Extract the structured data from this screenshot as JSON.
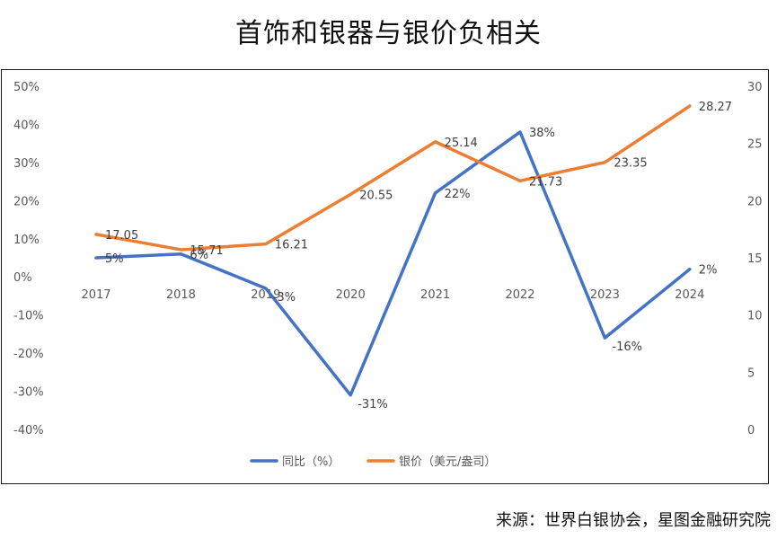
{
  "title": "首饰和银器与银价负相关",
  "source": "来源：世界白银协会，星图金融研究院",
  "chart_data": {
    "type": "line",
    "categories": [
      "2017",
      "2018",
      "2019",
      "2020",
      "2021",
      "2022",
      "2023",
      "2024"
    ],
    "series": [
      {
        "name": "同比（%）",
        "axis": "left",
        "color": "#4472C4",
        "values": [
          5,
          6,
          -3,
          -31,
          22,
          38,
          -16,
          2
        ],
        "labels": [
          "5%",
          "6%",
          "-3%",
          "-31%",
          "22%",
          "38%",
          "-16%",
          "2%"
        ]
      },
      {
        "name": "银价（美元/盎司）",
        "axis": "right",
        "color": "#ED7D31",
        "values": [
          17.05,
          15.71,
          16.21,
          20.55,
          25.14,
          21.73,
          23.35,
          28.27
        ],
        "labels": [
          "17.05",
          "15.71",
          "16.21",
          "20.55",
          "25.14",
          "21.73",
          "23.35",
          "28.27"
        ]
      }
    ],
    "y_left": {
      "ylim": [
        -40,
        50
      ],
      "ticks": [
        50,
        40,
        30,
        20,
        10,
        0,
        -10,
        -20,
        -30,
        -40
      ],
      "tick_labels": [
        "50%",
        "40%",
        "30%",
        "20%",
        "10%",
        "0%",
        "-10%",
        "-20%",
        "-30%",
        "-40%"
      ]
    },
    "y_right": {
      "ylim": [
        0,
        30
      ],
      "ticks": [
        30,
        25,
        20,
        15,
        10,
        5,
        0
      ],
      "tick_labels": [
        "30",
        "25",
        "20",
        "15",
        "10",
        "5",
        "0"
      ]
    },
    "grid": false,
    "legend_position": "bottom"
  }
}
